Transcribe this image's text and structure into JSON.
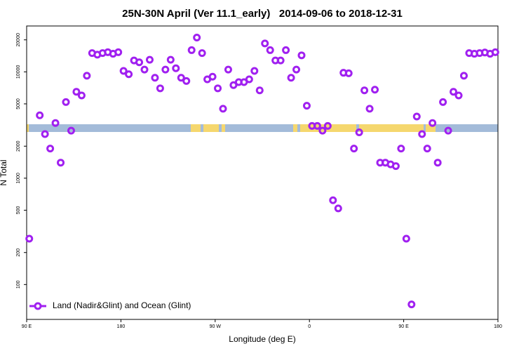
{
  "chart_data": {
    "type": "scatter",
    "title": "25N-30N April (Ver 11.1_early)   2014-09-06 to 2018-12-31",
    "x_label": "Longitude (deg E)",
    "y_label": "N Total",
    "xlim": [
      90,
      540
    ],
    "xticks": [
      {
        "value": 90,
        "label": "90 E"
      },
      {
        "value": 180,
        "label": "180"
      },
      {
        "value": 270,
        "label": "90 W"
      },
      {
        "value": 360,
        "label": "0"
      },
      {
        "value": 450,
        "label": "90 E"
      },
      {
        "value": 540,
        "label": "180"
      }
    ],
    "ylim": [
      47,
      27000
    ],
    "log_y": true,
    "yticks": [
      100,
      200,
      500,
      1000,
      2000,
      5000,
      10000,
      20000
    ],
    "legend": "bottom-left",
    "series": [
      {
        "name": "Land (Nadir&Glint) and Ocean (Glint)",
        "color": "#a020f0",
        "x": [
          92.5,
          102.5,
          107.5,
          112.5,
          117.5,
          122.5,
          127.5,
          132.5,
          137.5,
          142.5,
          147.5,
          152.5,
          157.5,
          162.5,
          167.5,
          172.5,
          177.5,
          182.5,
          187.5,
          192.5,
          197.5,
          202.5,
          207.5,
          212.5,
          217.5,
          222.5,
          227.5,
          232.5,
          237.5,
          242.5,
          247.5,
          252.5,
          257.5,
          262.5,
          267.5,
          272.5,
          277.5,
          282.5,
          287.5,
          292.5,
          297.5,
          302.5,
          307.5,
          312.5,
          317.5,
          322.5,
          327.5,
          332.5,
          337.5,
          342.5,
          347.5,
          352.5,
          357.5,
          362.5,
          367.5,
          372.5,
          377.5,
          382.5,
          387.5,
          392.5,
          397.5,
          402.5,
          407.5,
          412.5,
          417.5,
          422.5,
          427.5,
          432.5,
          437.5,
          442.5,
          447.5,
          452.5,
          457.5,
          462.5,
          467.5,
          472.5,
          477.5,
          482.5,
          487.5,
          492.5,
          497.5,
          502.5,
          507.5,
          512.5,
          517.5,
          522.5,
          527.5,
          532.5,
          537.5
        ],
        "values": [
          270,
          3900,
          2600,
          1900,
          3300,
          1400,
          5200,
          2800,
          6500,
          6000,
          9200,
          15000,
          14500,
          15000,
          15300,
          14800,
          15300,
          10200,
          9500,
          12800,
          12300,
          10500,
          13000,
          8800,
          7000,
          10500,
          13000,
          10800,
          8800,
          8200,
          16000,
          21000,
          15000,
          8500,
          9000,
          7000,
          4500,
          10500,
          7500,
          8000,
          8000,
          8500,
          10200,
          6700,
          18500,
          16000,
          12800,
          12800,
          16000,
          8800,
          10500,
          14300,
          4800,
          3100,
          3100,
          2800,
          3100,
          620,
          520,
          9800,
          9700,
          1900,
          2700,
          6700,
          4500,
          6800,
          1400,
          1400,
          1350,
          1300,
          1900,
          270,
          65,
          3800,
          2600,
          1900,
          3300,
          1400,
          5200,
          2800,
          6500,
          6000,
          9200,
          15000,
          14800,
          15000,
          15200,
          14800,
          15300
        ]
      }
    ]
  }
}
